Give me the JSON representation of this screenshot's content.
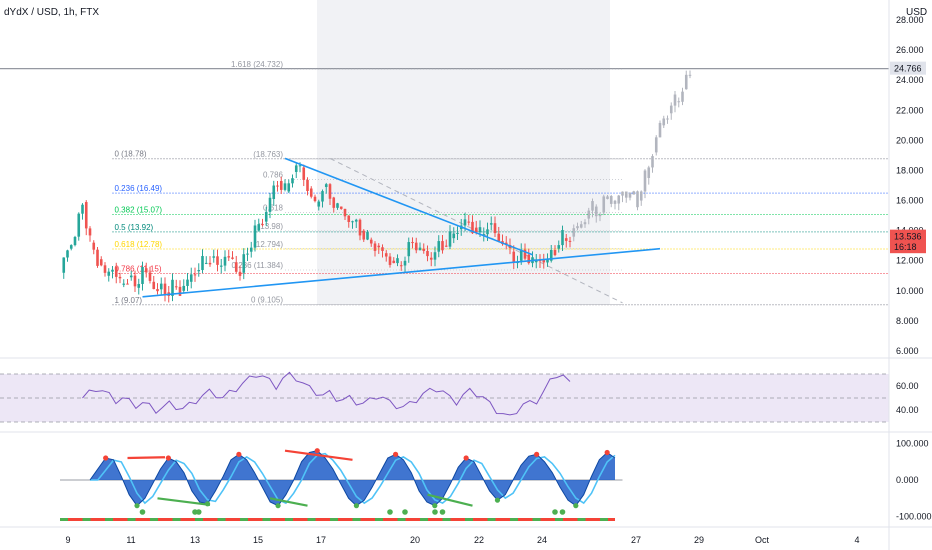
{
  "header": {
    "title": "dYdX / USD, 1h, FTX",
    "currency": "USD"
  },
  "colors": {
    "up": "#26a69a",
    "down": "#ef5350",
    "ghost": "#b2b5be",
    "trend": "#2196f3",
    "rsi_line": "#7e57c2",
    "rsi_band": "#ede7f6",
    "wave_fill": "#1e5dc8",
    "wave_fast": "#4fc3f7",
    "bull_cross": "#4caf50",
    "bear_cross": "#f44336",
    "fib_levels": [
      "#787b86",
      "#2962ff",
      "#00c853",
      "#00897b",
      "#ffd600",
      "#f23645",
      "#787b86"
    ]
  },
  "chart_data": [
    {
      "type": "line",
      "name": "price-candles",
      "x_ticks": [
        "9",
        "11",
        "13",
        "15",
        "17",
        "20",
        "22",
        "24",
        "27",
        "29",
        "Oct",
        "4"
      ],
      "ylim": [
        6,
        28
      ],
      "y_ticks": [
        "28.000",
        "26.000",
        "24.000",
        "22.000",
        "20.000",
        "18.000",
        "16.000",
        "14.000",
        "12.000",
        "10.000",
        "8.000",
        "6.000"
      ],
      "price_path": [
        [
          0,
          11.2
        ],
        [
          2,
          12.8
        ],
        [
          4,
          13.6
        ],
        [
          6,
          15.9
        ],
        [
          8,
          13.2
        ],
        [
          10,
          12.1
        ],
        [
          12,
          11.0
        ],
        [
          14,
          11.6
        ],
        [
          16,
          10.4
        ],
        [
          18,
          10.9
        ],
        [
          20,
          10.2
        ],
        [
          22,
          11.5
        ],
        [
          24,
          10.6
        ],
        [
          26,
          10.1
        ],
        [
          28,
          9.9
        ],
        [
          30,
          10.3
        ],
        [
          32,
          10.0
        ],
        [
          34,
          10.6
        ],
        [
          36,
          11.3
        ],
        [
          38,
          11.8
        ],
        [
          40,
          12.2
        ],
        [
          42,
          11.6
        ],
        [
          44,
          12.3
        ],
        [
          46,
          11.9
        ],
        [
          48,
          11.2
        ],
        [
          50,
          12.6
        ],
        [
          52,
          14.0
        ],
        [
          54,
          14.6
        ],
        [
          56,
          16.1
        ],
        [
          58,
          17.3
        ],
        [
          60,
          16.6
        ],
        [
          62,
          17.9
        ],
        [
          64,
          18.2
        ],
        [
          66,
          16.8
        ],
        [
          68,
          15.6
        ],
        [
          70,
          16.9
        ],
        [
          72,
          16.2
        ],
        [
          74,
          15.6
        ],
        [
          76,
          15.0
        ],
        [
          78,
          14.6
        ],
        [
          80,
          14.0
        ],
        [
          82,
          13.4
        ],
        [
          84,
          13.0
        ],
        [
          86,
          12.5
        ],
        [
          88,
          12.0
        ],
        [
          90,
          11.7
        ],
        [
          92,
          12.3
        ],
        [
          94,
          13.2
        ],
        [
          96,
          12.8
        ],
        [
          98,
          12.2
        ],
        [
          100,
          12.6
        ],
        [
          102,
          13.0
        ],
        [
          104,
          13.5
        ],
        [
          106,
          14.1
        ],
        [
          108,
          14.6
        ],
        [
          110,
          14.2
        ],
        [
          112,
          13.7
        ],
        [
          114,
          14.4
        ],
        [
          116,
          13.8
        ],
        [
          118,
          13.2
        ],
        [
          120,
          12.6
        ],
        [
          122,
          12.0
        ],
        [
          124,
          12.4
        ],
        [
          126,
          11.9
        ],
        [
          128,
          12.1
        ],
        [
          130,
          12.0
        ],
        [
          132,
          12.8
        ],
        [
          134,
          13.5
        ],
        [
          136,
          13.6
        ]
      ],
      "projection_path": [
        [
          136,
          13.6
        ],
        [
          138,
          14.2
        ],
        [
          140,
          14.8
        ],
        [
          142,
          15.6
        ],
        [
          144,
          15.2
        ],
        [
          146,
          16.3
        ],
        [
          148,
          15.8
        ],
        [
          150,
          16.6
        ],
        [
          152,
          16.4
        ],
        [
          154,
          16.0
        ],
        [
          156,
          17.5
        ],
        [
          158,
          19.2
        ],
        [
          160,
          21.0
        ],
        [
          162,
          21.8
        ],
        [
          164,
          22.6
        ],
        [
          166,
          23.4
        ],
        [
          168,
          24.4
        ]
      ],
      "fib_retracement": [
        {
          "label": "0 (18.78)",
          "ratio": 0,
          "price": 18.78
        },
        {
          "label": "0.236 (16.49)",
          "ratio": 0.236,
          "price": 16.49
        },
        {
          "label": "0.382 (15.07)",
          "ratio": 0.382,
          "price": 15.07
        },
        {
          "label": "0.5 (13.92)",
          "ratio": 0.5,
          "price": 13.92
        },
        {
          "label": "0.618 (12.78)",
          "ratio": 0.618,
          "price": 12.78
        },
        {
          "label": "0.786 (11.15)",
          "ratio": 0.786,
          "price": 11.15
        },
        {
          "label": "1 (9.07)",
          "ratio": 1,
          "price": 9.07
        }
      ],
      "fib_extension": [
        {
          "label": "1.618 (24.732)",
          "price": 24.732
        },
        {
          "label": "(18.763)",
          "price": 18.763
        },
        {
          "label": "0.786",
          "price": 17.4
        },
        {
          "label": "0.618",
          "price": 15.2
        },
        {
          "label": "(13.98)",
          "price": 13.98
        },
        {
          "label": "(12.794)",
          "price": 12.794
        },
        {
          "label": "0.236 (11.384)",
          "price": 11.384
        },
        {
          "label": "0 (9.105)",
          "price": 9.105
        }
      ],
      "trendlines": [
        {
          "from": [
            22,
            9.6
          ],
          "to": [
            160,
            12.8
          ]
        },
        {
          "from": [
            60,
            18.8
          ],
          "to": [
            126,
            12.4
          ]
        }
      ],
      "price_labels": [
        {
          "text": "24.766",
          "price": 24.766,
          "style": "ghost"
        },
        {
          "text": "13.536",
          "price": 13.6,
          "style": "down"
        },
        {
          "text": "16:18",
          "price": 12.9,
          "style": "down"
        }
      ],
      "horizontal_line": {
        "price": 24.766
      }
    },
    {
      "type": "line",
      "name": "rsi",
      "ylim": [
        25,
        80
      ],
      "y_ticks": [
        "60.00",
        "40.00"
      ],
      "band": [
        30,
        70
      ],
      "mid": 50,
      "values": [
        50,
        54,
        58,
        56,
        52,
        48,
        50,
        47,
        44,
        46,
        43,
        40,
        42,
        45,
        43,
        41,
        44,
        48,
        52,
        55,
        53,
        50,
        54,
        58,
        62,
        66,
        70,
        68,
        64,
        60,
        66,
        69,
        67,
        62,
        58,
        55,
        52,
        54,
        50,
        48,
        50,
        47,
        45,
        48,
        52,
        50,
        46,
        44,
        42,
        45,
        49,
        53,
        56,
        58,
        55,
        50,
        47,
        52,
        56,
        54,
        50,
        45,
        40,
        36,
        34,
        40,
        44,
        46,
        48,
        54,
        64,
        70,
        68,
        62
      ]
    },
    {
      "type": "area",
      "name": "momentum-wave",
      "ylim": [
        -120,
        120
      ],
      "y_ticks": [
        "100.000",
        "0.000",
        "-100.000"
      ],
      "values": [
        0,
        30,
        60,
        55,
        10,
        -40,
        -70,
        -50,
        -10,
        30,
        60,
        50,
        20,
        -30,
        -60,
        -65,
        -30,
        10,
        55,
        70,
        55,
        20,
        -20,
        -60,
        -70,
        -40,
        0,
        50,
        75,
        80,
        60,
        30,
        -10,
        -50,
        -70,
        -55,
        -20,
        20,
        60,
        70,
        55,
        20,
        -30,
        -60,
        -70,
        -50,
        -10,
        35,
        60,
        50,
        10,
        -30,
        -55,
        -40,
        0,
        40,
        65,
        70,
        50,
        20,
        -20,
        -55,
        -70,
        -40,
        10,
        55,
        75,
        60
      ]
    }
  ]
}
